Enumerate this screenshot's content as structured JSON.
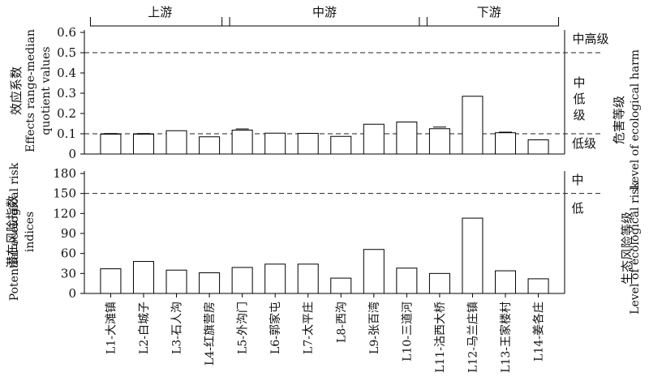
{
  "chart_data": [
    {
      "type": "bar",
      "title": "",
      "ylabel_cn": "效应系数",
      "ylabel_en": [
        "Effects range-median",
        "quotient values"
      ],
      "yticks": [
        "0",
        "0.1",
        "0.2",
        "0.3",
        "0.4",
        "0.5",
        "0.6"
      ],
      "ylim": [
        0,
        0.6
      ],
      "categories": [
        "L1-大滩镇",
        "L2-白城子",
        "L3-石人沟",
        "L4-红旗营房",
        "L5-外沟门",
        "L6-郭家屯",
        "L7-太平庄",
        "L8-西沟",
        "L9-张百湾",
        "L10-三道河",
        "L11-沽西大桥",
        "L12-马兰庄镇",
        "L13-王家楼村",
        "L14-姜各庄"
      ],
      "values": [
        0.098,
        0.098,
        0.115,
        0.085,
        0.118,
        0.103,
        0.102,
        0.087,
        0.147,
        0.158,
        0.125,
        0.285,
        0.105,
        0.07
      ],
      "error": [
        0.003,
        0.003,
        0.0,
        0.0,
        0.006,
        0.0,
        0.0,
        0.0,
        0.0,
        0.0,
        0.008,
        0.0,
        0.003,
        0.0
      ],
      "thresholds": [
        0.5,
        0.1
      ],
      "level_labels": [
        "中高级",
        "中\n低\n级",
        "低级"
      ],
      "right_label_cn": "危害等级",
      "right_label_en": "Level of ecological harm",
      "reaches": [
        {
          "label": "上游",
          "from": 0,
          "to": 3
        },
        {
          "label": "中游",
          "from": 4,
          "to": 9
        },
        {
          "label": "下游",
          "from": 10,
          "to": 13
        }
      ]
    },
    {
      "type": "bar",
      "title": "",
      "ylabel_cn": "潜在风险指数",
      "ylabel_en": [
        "Potential ecological risk",
        "indices"
      ],
      "yticks": [
        "0",
        "30",
        "60",
        "90",
        "120",
        "150",
        "180"
      ],
      "ylim": [
        0,
        180
      ],
      "categories": [
        "L1-大滩镇",
        "L2-白城子",
        "L3-石人沟",
        "L4-红旗营房",
        "L5-外沟门",
        "L6-郭家屯",
        "L7-太平庄",
        "L8-西沟",
        "L9-张百湾",
        "L10-三道河",
        "L11-沽西大桥",
        "L12-马兰庄镇",
        "L13-王家楼村",
        "L14-姜各庄"
      ],
      "values": [
        37,
        48,
        35,
        31,
        39,
        44,
        44,
        23,
        66,
        38,
        30,
        113,
        34,
        22
      ],
      "thresholds": [
        150
      ],
      "level_labels": [
        "中",
        "低"
      ],
      "right_label_cn": "生态风险等级",
      "right_label_en": "Level of ecological risk"
    }
  ]
}
